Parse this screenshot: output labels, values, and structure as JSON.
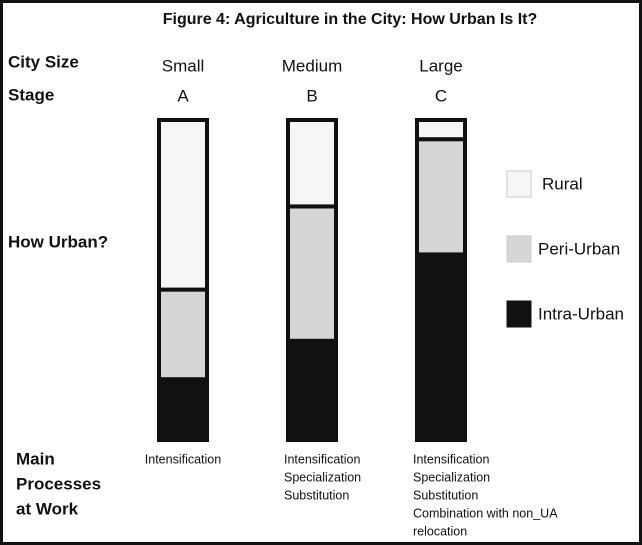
{
  "chart_data": {
    "type": "stacked_bar",
    "title": "Figure 4: Agriculture in the City: How Urban Is It?",
    "row_labels": {
      "city_size": "City Size",
      "stage": "Stage",
      "how_urban": "How Urban?",
      "processes": [
        "Main",
        "Processes",
        "at Work"
      ]
    },
    "categories": [
      "Small",
      "Medium",
      "Large"
    ],
    "stages": [
      "A",
      "B",
      "C"
    ],
    "series": [
      {
        "name": "Rural",
        "color": "#f6f6f6",
        "values": [
          53,
          27,
          6
        ]
      },
      {
        "name": "Peri-Urban",
        "color": "#d6d6d6",
        "values": [
          28,
          42,
          36
        ]
      },
      {
        "name": "Intra-Urban",
        "color": "#111111",
        "values": [
          19,
          31,
          58
        ]
      }
    ],
    "ylim": [
      0,
      100
    ],
    "processes": [
      [
        "Intensification"
      ],
      [
        "Intensification",
        "Specialization",
        "Substitution"
      ],
      [
        "Intensification",
        "Specialization",
        "Substitution",
        "Combination with non_UA",
        "relocation"
      ]
    ]
  }
}
